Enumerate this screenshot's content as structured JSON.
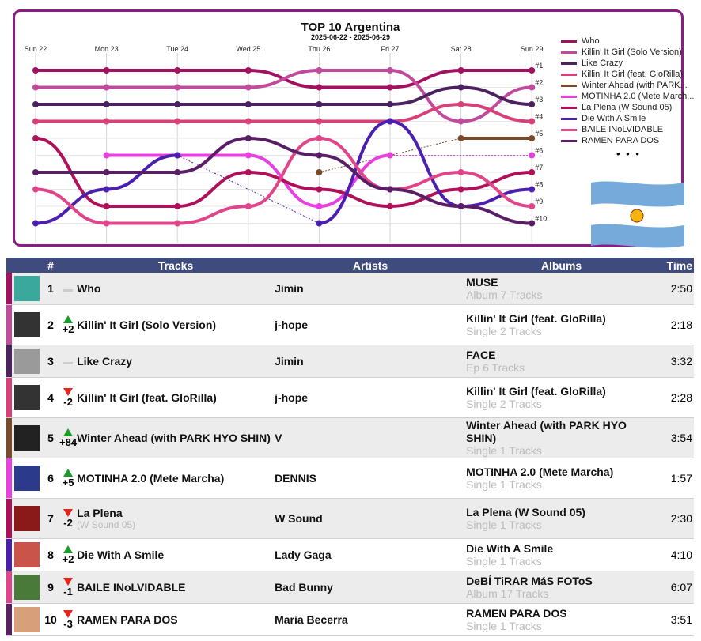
{
  "chart": {
    "title": "TOP 10 Argentina",
    "date_range": "2025-06-22 - 2025-06-29",
    "days": [
      "Sun 22",
      "Mon 23",
      "Tue 24",
      "Wed 25",
      "Thu 26",
      "Fri 27",
      "Sat 28",
      "Sun 29"
    ],
    "rank_labels": [
      "#1",
      "#2",
      "#3",
      "#4",
      "#5",
      "#6",
      "#7",
      "#8",
      "#9",
      "#10"
    ],
    "more": "• • •"
  },
  "chart_data": {
    "type": "line",
    "title": "TOP 10 Argentina",
    "subtitle": "2025-06-22 - 2025-06-29",
    "x": [
      "Sun 22",
      "Mon 23",
      "Tue 24",
      "Wed 25",
      "Thu 26",
      "Fri 27",
      "Sat 28",
      "Sun 29"
    ],
    "y_axis": "rank (1 at top, 10 at bottom)",
    "ylim": [
      1,
      10
    ],
    "legend_position": "right",
    "series": [
      {
        "name": "Who",
        "color": "#a3105f",
        "values": [
          1,
          1,
          1,
          1,
          2,
          2,
          1,
          1
        ]
      },
      {
        "name": "Killin' It Girl (Solo Version)",
        "color": "#c04a9b",
        "values": [
          2,
          2,
          2,
          2,
          1,
          1,
          4,
          2
        ]
      },
      {
        "name": "Like Crazy",
        "color": "#4b2260",
        "values": [
          3,
          3,
          3,
          3,
          3,
          3,
          2,
          3
        ]
      },
      {
        "name": "Killin' It Girl (feat. GloRilla)",
        "color": "#d8407a",
        "values": [
          4,
          4,
          4,
          4,
          4,
          4,
          3,
          4
        ]
      },
      {
        "name": "Winter Ahead (with PARK HYO SHIN)",
        "color": "#7b4a2a",
        "values": [
          null,
          null,
          null,
          null,
          7,
          null,
          5,
          5
        ]
      },
      {
        "name": "MOTINHA 2.0 (Mete Marcha)",
        "color": "#e83fe0",
        "values": [
          null,
          6,
          6,
          6,
          9,
          6,
          null,
          6
        ]
      },
      {
        "name": "La Plena (W Sound 05)",
        "color": "#b0105a",
        "values": [
          5,
          9,
          9,
          7,
          8,
          9,
          8,
          7
        ]
      },
      {
        "name": "Die With A Smile",
        "color": "#4b1fb0",
        "values": [
          10,
          8,
          6,
          null,
          10,
          4,
          9,
          8
        ]
      },
      {
        "name": "BAILE INoLVIDABLE",
        "color": "#e0458a",
        "values": [
          8,
          10,
          10,
          9,
          5,
          8,
          7,
          9
        ]
      },
      {
        "name": "RAMEN PARA DOS",
        "color": "#5a1e66",
        "values": [
          7,
          7,
          7,
          5,
          6,
          8,
          9,
          10
        ]
      }
    ]
  },
  "legend": [
    {
      "label": "Who",
      "color": "#a3105f"
    },
    {
      "label": "Killin' It Girl (Solo Version)",
      "color": "#c04a9b"
    },
    {
      "label": "Like Crazy",
      "color": "#4b2260"
    },
    {
      "label": "Killin' It Girl (feat. GloRilla)",
      "color": "#d8407a"
    },
    {
      "label": "Winter Ahead (with PARK...",
      "color": "#7b4a2a"
    },
    {
      "label": "MOTINHA 2.0 (Mete March...",
      "color": "#e83fe0"
    },
    {
      "label": "La Plena (W Sound 05)",
      "color": "#b0105a"
    },
    {
      "label": "Die With A Smile",
      "color": "#4b1fb0"
    },
    {
      "label": "BAILE INoLVIDABLE",
      "color": "#e0458a"
    },
    {
      "label": "RAMEN PARA DOS",
      "color": "#5a1e66"
    }
  ],
  "table": {
    "headers": {
      "rank": "#",
      "tracks": "Tracks",
      "artists": "Artists",
      "albums": "Albums",
      "time": "Time"
    },
    "rows": [
      {
        "rank": "1",
        "move": "same",
        "change": "",
        "track": "Who",
        "track_sub": "",
        "artist": "Jimin",
        "album": "MUSE",
        "album_sub": "Album 7 Tracks",
        "time": "2:50",
        "color": "#a3105f",
        "cover": "#3aa89c"
      },
      {
        "rank": "2",
        "move": "up",
        "change": "+2",
        "track": "Killin' It Girl (Solo Version)",
        "track_sub": "",
        "artist": "j-hope",
        "album": "Killin' It Girl (feat. GloRilla)",
        "album_sub": "Single 2 Tracks",
        "time": "2:18",
        "color": "#c04a9b",
        "cover": "#333333"
      },
      {
        "rank": "3",
        "move": "same",
        "change": "",
        "track": "Like Crazy",
        "track_sub": "",
        "artist": "Jimin",
        "album": "FACE",
        "album_sub": "Ep 6 Tracks",
        "time": "3:32",
        "color": "#4b2260",
        "cover": "#9a9a9a"
      },
      {
        "rank": "4",
        "move": "down",
        "change": "-2",
        "track": "Killin' It Girl (feat. GloRilla)",
        "track_sub": "",
        "artist": "j-hope",
        "album": "Killin' It Girl (feat. GloRilla)",
        "album_sub": "Single 2 Tracks",
        "time": "2:28",
        "color": "#d8407a",
        "cover": "#333333"
      },
      {
        "rank": "5",
        "move": "up",
        "change": "+84",
        "track": "Winter Ahead (with PARK HYO SHIN)",
        "track_sub": "",
        "artist": "V",
        "album": "Winter Ahead (with PARK HYO SHIN)",
        "album_sub": "Single 1 Tracks",
        "time": "3:54",
        "color": "#7b4a2a",
        "cover": "#222222"
      },
      {
        "rank": "6",
        "move": "up",
        "change": "+5",
        "track": "MOTINHA 2.0 (Mete Marcha)",
        "track_sub": "",
        "artist": "DENNIS",
        "album": "MOTINHA 2.0 (Mete Marcha)",
        "album_sub": "Single 1 Tracks",
        "time": "1:57",
        "color": "#e83fe0",
        "cover": "#2b3a8a"
      },
      {
        "rank": "7",
        "move": "down",
        "change": "-2",
        "track": "La Plena",
        "track_sub": "(W Sound 05)",
        "artist": "W Sound",
        "album": "La Plena (W Sound 05)",
        "album_sub": "Single 1 Tracks",
        "time": "2:30",
        "color": "#b0105a",
        "cover": "#8a1a1a"
      },
      {
        "rank": "8",
        "move": "up",
        "change": "+2",
        "track": "Die With A Smile",
        "track_sub": "",
        "artist": "Lady Gaga",
        "album": "Die With A Smile",
        "album_sub": "Single 1 Tracks",
        "time": "4:10",
        "color": "#4b1fb0",
        "cover": "#c8544a"
      },
      {
        "rank": "9",
        "move": "down",
        "change": "-1",
        "track": "BAILE INoLVIDABLE",
        "track_sub": "",
        "artist": "Bad Bunny",
        "album": "DeBÍ TiRAR MáS FOToS",
        "album_sub": "Album 17 Tracks",
        "time": "6:07",
        "color": "#e0458a",
        "cover": "#4a7a3a"
      },
      {
        "rank": "10",
        "move": "down",
        "change": "-3",
        "track": "RAMEN PARA DOS",
        "track_sub": "",
        "artist": "Maria Becerra",
        "album": "RAMEN PARA DOS",
        "album_sub": "Single 1 Tracks",
        "time": "3:51",
        "color": "#5a1e66",
        "cover": "#d8a07a"
      }
    ]
  }
}
